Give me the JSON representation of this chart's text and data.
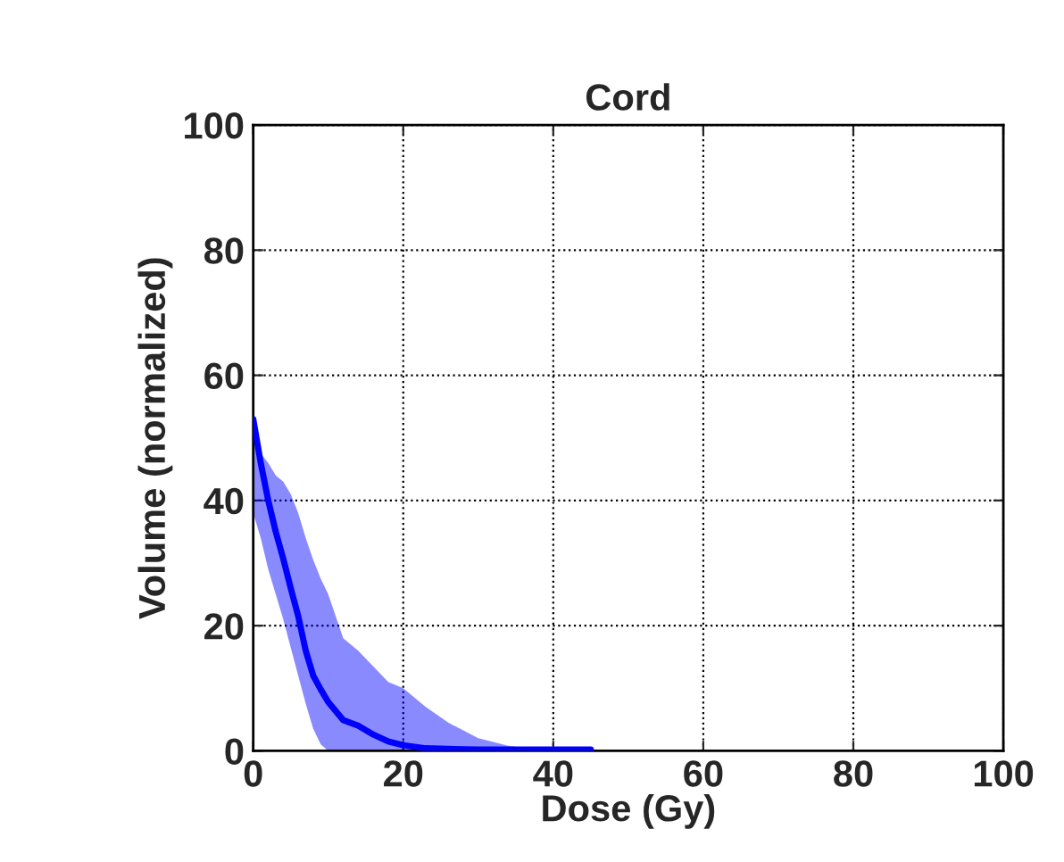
{
  "chart_data": {
    "type": "line",
    "title": "Cord",
    "xlabel": "Dose (Gy)",
    "ylabel": "Volume (normalized)",
    "xlim": [
      0,
      100
    ],
    "ylim": [
      0,
      100
    ],
    "xticks": [
      0,
      20,
      40,
      60,
      80,
      100
    ],
    "yticks": [
      0,
      20,
      40,
      60,
      80,
      100
    ],
    "grid": true,
    "series": [
      {
        "color": "#0000ff",
        "x": [
          0,
          1,
          2,
          3,
          4,
          5,
          6,
          7,
          8,
          9,
          10,
          12,
          14,
          16,
          18,
          20,
          23,
          26,
          30,
          34,
          38,
          45
        ],
        "values": [
          53,
          46,
          40,
          35,
          30.7,
          26,
          21.5,
          16,
          12,
          9.8,
          7.8,
          4.9,
          4,
          2.6,
          1.5,
          0.9,
          0.4,
          0.3,
          0.2,
          0.2,
          0.2,
          0.2
        ],
        "upper": [
          53,
          47.5,
          46,
          44,
          43,
          41,
          38,
          34,
          30.5,
          27.5,
          25,
          18,
          16,
          13.5,
          11,
          10,
          7,
          4.5,
          2,
          0.8,
          0.2,
          0
        ],
        "lower": [
          38,
          34,
          29,
          25,
          21,
          16.5,
          12,
          7.5,
          3.5,
          1,
          0,
          0,
          0,
          0,
          0,
          0,
          0,
          0,
          0,
          0,
          0,
          0
        ]
      }
    ]
  }
}
